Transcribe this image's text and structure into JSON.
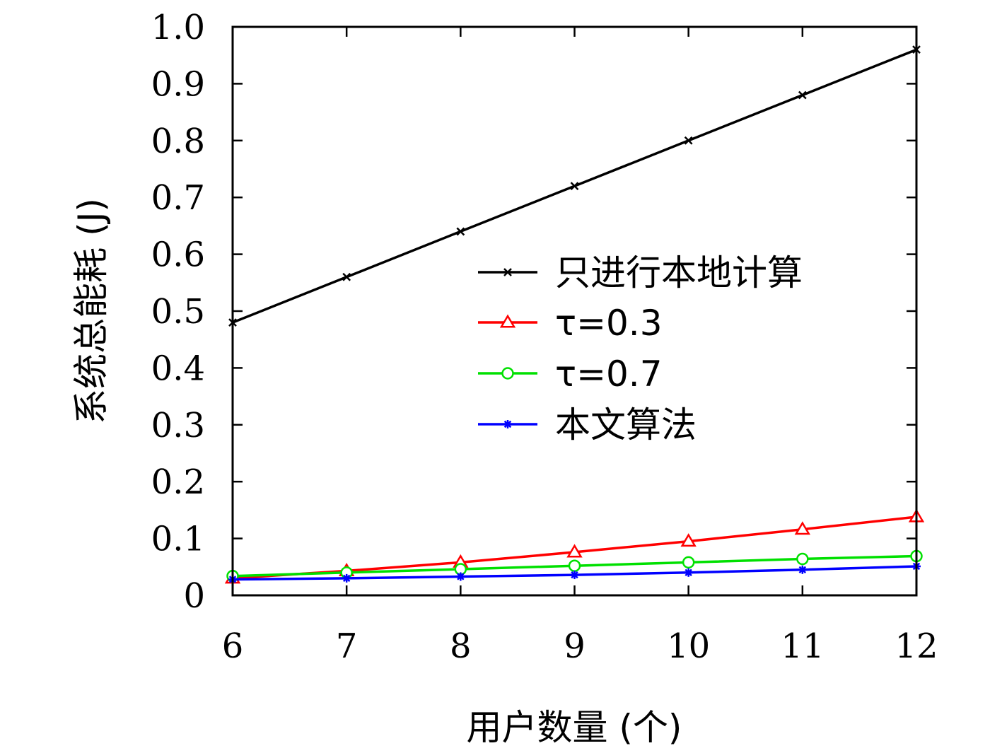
{
  "chart_data": {
    "type": "line",
    "title": "",
    "xlabel": "用户数量 (个)",
    "ylabel": "系统总能耗 (J)",
    "x": [
      6,
      7,
      8,
      9,
      10,
      11,
      12
    ],
    "xlim": [
      6,
      12
    ],
    "ylim": [
      0,
      1.0
    ],
    "xticks": [
      "6",
      "7",
      "8",
      "9",
      "10",
      "11",
      "12"
    ],
    "yticks": [
      "0",
      "0.1",
      "0.2",
      "0.3",
      "0.4",
      "0.5",
      "0.6",
      "0.7",
      "0.8",
      "0.9",
      "1.0"
    ],
    "grid": false,
    "legend_position": "center-right",
    "series": [
      {
        "name": "只进行本地计算",
        "color": "#000000",
        "marker": "x-mark",
        "values": [
          0.48,
          0.56,
          0.64,
          0.72,
          0.8,
          0.88,
          0.96
        ]
      },
      {
        "name": "τ=0.3",
        "color": "#ff0000",
        "marker": "triangle",
        "values": [
          0.03,
          0.043,
          0.058,
          0.076,
          0.095,
          0.116,
          0.138
        ]
      },
      {
        "name": "τ=0.7",
        "color": "#00e000",
        "marker": "circle",
        "values": [
          0.034,
          0.04,
          0.046,
          0.052,
          0.058,
          0.064,
          0.069
        ]
      },
      {
        "name": "本文算法",
        "color": "#0000ff",
        "marker": "asterisk",
        "values": [
          0.028,
          0.03,
          0.033,
          0.036,
          0.04,
          0.045,
          0.051
        ]
      }
    ]
  }
}
